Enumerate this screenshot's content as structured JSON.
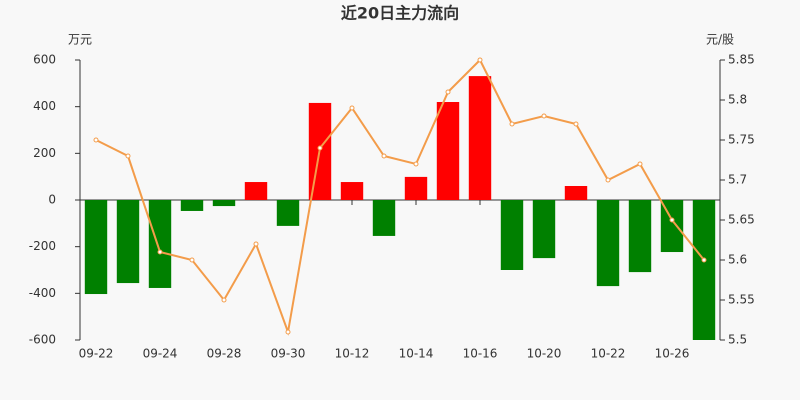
{
  "chart_data": {
    "type": "bar-line",
    "title": "近20日主力流向",
    "y_label": "万元",
    "y2_label": "元/股",
    "categories": [
      "09-22",
      null,
      "09-24",
      null,
      "09-28",
      null,
      "09-30",
      null,
      "10-12",
      null,
      "10-14",
      null,
      "10-16",
      null,
      "10-20",
      null,
      "10-22",
      null,
      "10-26",
      null
    ],
    "series": [
      {
        "type": "bar",
        "positive_color": "#ff0000",
        "negative_color": "#008000",
        "values": [
          -403,
          -356,
          -377,
          -47,
          -26,
          77,
          -111,
          416,
          77,
          -154,
          99,
          420,
          531,
          -300,
          -249,
          60,
          -369,
          -309,
          -223,
          -600
        ]
      },
      {
        "type": "line",
        "axis": "y2",
        "color": "#f39c4a",
        "values": [
          5.75,
          5.73,
          5.61,
          5.6,
          5.55,
          5.62,
          5.51,
          5.74,
          5.79,
          5.73,
          5.72,
          5.81,
          5.85,
          5.77,
          5.78,
          5.77,
          5.7,
          5.72,
          5.65,
          5.6
        ]
      }
    ],
    "ylim": [
      -600,
      600
    ],
    "yticks": [
      -600,
      -400,
      -200,
      0,
      200,
      400,
      600
    ],
    "y2lim": [
      5.5,
      5.85
    ],
    "y2ticks": [
      5.5,
      5.55,
      5.6,
      5.65,
      5.7,
      5.75,
      5.8,
      5.85
    ]
  }
}
